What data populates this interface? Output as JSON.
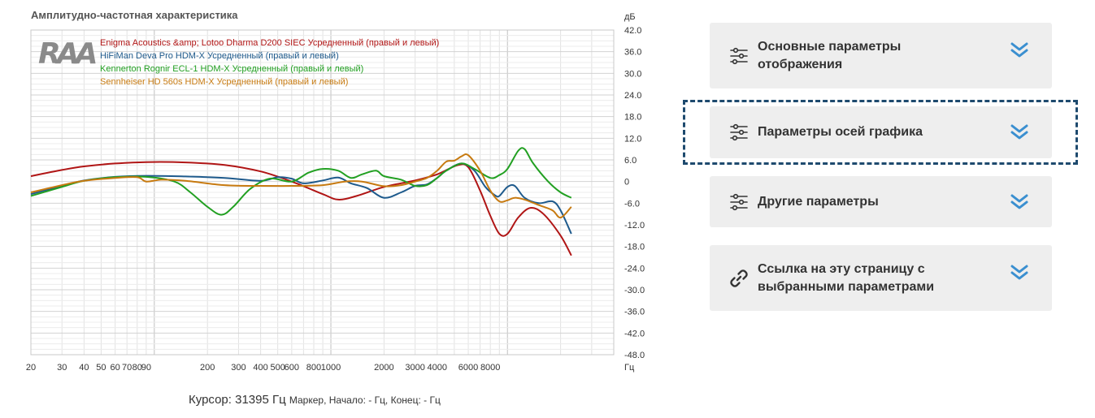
{
  "chart_data": {
    "type": "line",
    "title": "Амплитудно-частотная характеристика",
    "xlabel": "",
    "ylabel": "",
    "x_unit": "Гц",
    "y_unit": "дБ",
    "x_scale": "log",
    "xlim": [
      20,
      40000
    ],
    "ylim": [
      -48,
      42
    ],
    "x_ticks": [
      20,
      30,
      40,
      50,
      60,
      70,
      80,
      90,
      200,
      300,
      400,
      500,
      600,
      800,
      1000,
      2000,
      3000,
      4000,
      6000,
      8000
    ],
    "x_tick_labels": [
      "20",
      "30",
      "40",
      "50",
      "60",
      "70",
      "80",
      "90",
      "200",
      "300",
      "400",
      "500",
      "600",
      "800",
      "1000",
      "2000",
      "3000",
      "4000",
      "6000",
      "8000"
    ],
    "y_ticks": [
      42,
      36,
      30,
      24,
      18,
      12,
      6,
      0,
      -6,
      -12,
      -18,
      -24,
      -30,
      -36,
      -42,
      -48
    ],
    "y_tick_labels": [
      "42.0",
      "36.0",
      "30.0",
      "24.0",
      "18.0",
      "12.0",
      "6.0",
      "0",
      "-6.0",
      "-12.0",
      "-18.0",
      "-24.0",
      "-30.0",
      "-36.0",
      "-42.0",
      "-48.0"
    ],
    "grid": true,
    "legend_position": "top-left",
    "series": [
      {
        "name": "Enigma Acoustics &amp; Lotoo Dharma D200 SIEC Усредненный (правый и левый)",
        "color": "#b01515",
        "points": [
          [
            20,
            1.5
          ],
          [
            30,
            3.2
          ],
          [
            40,
            4.2
          ],
          [
            60,
            5.0
          ],
          [
            90,
            5.4
          ],
          [
            150,
            5.3
          ],
          [
            250,
            4.6
          ],
          [
            400,
            2.8
          ],
          [
            600,
            0.0
          ],
          [
            900,
            -3.5
          ],
          [
            1100,
            -5.0
          ],
          [
            1400,
            -4.0
          ],
          [
            2000,
            -1.5
          ],
          [
            3000,
            0.3
          ],
          [
            4000,
            2.0
          ],
          [
            5200,
            4.5
          ],
          [
            6000,
            4.0
          ],
          [
            7000,
            -2.5
          ],
          [
            8000,
            -9.5
          ],
          [
            9000,
            -14.5
          ],
          [
            10000,
            -14.5
          ],
          [
            11500,
            -10.0
          ],
          [
            13500,
            -7.3
          ],
          [
            16000,
            -9.0
          ],
          [
            20000,
            -15.0
          ],
          [
            23000,
            -20.5
          ]
        ]
      },
      {
        "name": "HiFiMan Deva Pro HDM-X Усредненный (правый и левый)",
        "color": "#1e5a8c",
        "points": [
          [
            20,
            -3.5
          ],
          [
            30,
            -1.2
          ],
          [
            40,
            0.3
          ],
          [
            60,
            1.3
          ],
          [
            90,
            1.6
          ],
          [
            150,
            1.4
          ],
          [
            250,
            1.0
          ],
          [
            400,
            0.2
          ],
          [
            500,
            1.2
          ],
          [
            600,
            0.8
          ],
          [
            700,
            -0.5
          ],
          [
            900,
            0.3
          ],
          [
            1100,
            1.1
          ],
          [
            1300,
            -0.5
          ],
          [
            1600,
            -1.8
          ],
          [
            2000,
            -4.5
          ],
          [
            2500,
            -3.0
          ],
          [
            3000,
            -1.2
          ],
          [
            3500,
            -0.8
          ],
          [
            4000,
            1.0
          ],
          [
            4500,
            3.0
          ],
          [
            5500,
            5.0
          ],
          [
            6500,
            3.0
          ],
          [
            7500,
            -1.5
          ],
          [
            8500,
            -3.8
          ],
          [
            9000,
            -4.0
          ],
          [
            10000,
            -1.5
          ],
          [
            11000,
            -1.2
          ],
          [
            12500,
            -4.5
          ],
          [
            15000,
            -6.0
          ],
          [
            18000,
            -5.5
          ],
          [
            20000,
            -8.0
          ],
          [
            23000,
            -14.5
          ]
        ]
      },
      {
        "name": "Kennerton Rognir ECL-1 HDM-X Усредненный (правый и левый)",
        "color": "#22a022",
        "points": [
          [
            20,
            -4.0
          ],
          [
            30,
            -1.5
          ],
          [
            40,
            0.2
          ],
          [
            60,
            1.2
          ],
          [
            90,
            1.3
          ],
          [
            130,
            0.0
          ],
          [
            160,
            -3.0
          ],
          [
            200,
            -7.0
          ],
          [
            240,
            -9.2
          ],
          [
            280,
            -7.0
          ],
          [
            350,
            -2.0
          ],
          [
            450,
            0.8
          ],
          [
            600,
            0.0
          ],
          [
            750,
            2.5
          ],
          [
            900,
            3.5
          ],
          [
            1100,
            3.0
          ],
          [
            1300,
            1.0
          ],
          [
            1500,
            2.0
          ],
          [
            1800,
            3.0
          ],
          [
            2000,
            1.5
          ],
          [
            2500,
            0.5
          ],
          [
            3000,
            -1.2
          ],
          [
            3500,
            -1.0
          ],
          [
            4000,
            1.0
          ],
          [
            4500,
            3.0
          ],
          [
            5500,
            5.0
          ],
          [
            6500,
            3.5
          ],
          [
            8000,
            1.0
          ],
          [
            9000,
            1.8
          ],
          [
            10000,
            3.5
          ],
          [
            11500,
            8.5
          ],
          [
            12500,
            9.0
          ],
          [
            14000,
            5.0
          ],
          [
            17000,
            0.0
          ],
          [
            20000,
            -3.0
          ],
          [
            23000,
            -4.5
          ]
        ]
      },
      {
        "name": "Sennheiser HD 560s HDM-X Усредненный (правый и левый)",
        "color": "#c77a10",
        "points": [
          [
            20,
            -3.0
          ],
          [
            30,
            -1.0
          ],
          [
            40,
            0.2
          ],
          [
            60,
            1.0
          ],
          [
            80,
            1.2
          ],
          [
            90,
            0.0
          ],
          [
            110,
            0.5
          ],
          [
            150,
            0.2
          ],
          [
            250,
            -1.0
          ],
          [
            400,
            -1.2
          ],
          [
            600,
            -1.2
          ],
          [
            900,
            -1.0
          ],
          [
            1200,
            0.0
          ],
          [
            1500,
            0.0
          ],
          [
            2000,
            -1.3
          ],
          [
            2500,
            -1.0
          ],
          [
            3000,
            0.0
          ],
          [
            3500,
            1.0
          ],
          [
            4000,
            3.0
          ],
          [
            4500,
            5.5
          ],
          [
            5000,
            5.8
          ],
          [
            5500,
            7.0
          ],
          [
            6000,
            7.3
          ],
          [
            7000,
            3.0
          ],
          [
            8000,
            -2.5
          ],
          [
            9000,
            -5.5
          ],
          [
            10000,
            -5.2
          ],
          [
            11000,
            -4.5
          ],
          [
            12500,
            -5.0
          ],
          [
            15000,
            -6.5
          ],
          [
            18000,
            -8.0
          ],
          [
            20000,
            -10.0
          ],
          [
            23000,
            -7.0
          ]
        ]
      }
    ]
  },
  "cursor": {
    "main": "Курсор: 31395 Гц",
    "marker": "Маркер, Начало: - Гц, Конец: - Гц"
  },
  "panels": [
    {
      "label": "Основные параметры отображения",
      "icon": "sliders-icon",
      "chevron": "double-chevron-down-icon"
    },
    {
      "label": "Параметры осей графика",
      "icon": "sliders-icon",
      "chevron": "double-chevron-down-icon"
    },
    {
      "label": "Другие параметры",
      "icon": "sliders-icon",
      "chevron": "double-chevron-down-icon"
    },
    {
      "label": "Ссылка на эту страницу с выбранными параметрами",
      "icon": "link-icon",
      "chevron": "double-chevron-down-icon"
    }
  ],
  "colors": {
    "accent": "#3a8fd0",
    "panel_bg": "#eeeeee",
    "focus_border": "#1e4a6e"
  }
}
